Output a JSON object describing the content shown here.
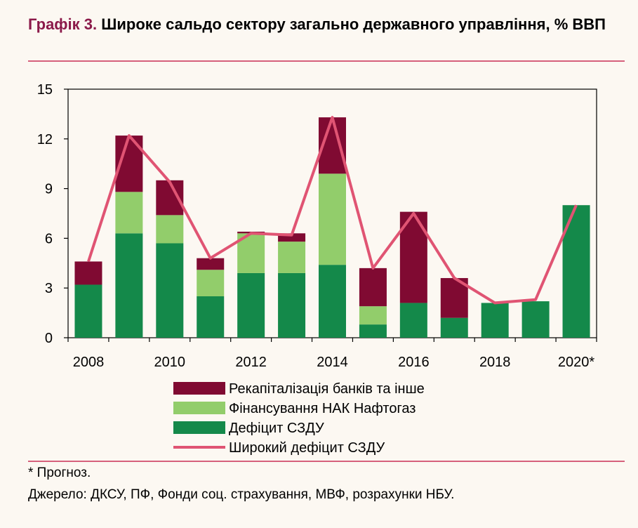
{
  "header": {
    "title_lead": "Графік 3.",
    "title_rest": "Широке сальдо сектору загально державного управління, % ВВП"
  },
  "footnote": "* Прогноз.",
  "source": "Джерело: ДКСУ, ПФ, Фонди соц. страхування, МВФ, розрахунки НБУ.",
  "colors": {
    "recap": "#800a32",
    "naftogaz": "#92cd6b",
    "deficit": "#14894a",
    "line": "#e05473"
  },
  "chart_data": {
    "type": "bar",
    "stacked": true,
    "categories": [
      "2008",
      "2009",
      "2010",
      "2011",
      "2012",
      "2013",
      "2014",
      "2015",
      "2016",
      "2017",
      "2018",
      "2019",
      "2020*"
    ],
    "tick_labels": [
      "2008",
      "",
      "2010",
      "",
      "2012",
      "",
      "2014",
      "",
      "2016",
      "",
      "2018",
      "",
      "2020*"
    ],
    "ylim": [
      0,
      15
    ],
    "yticks": [
      0,
      3,
      6,
      9,
      12,
      15
    ],
    "legend_position": "bottom",
    "series": [
      {
        "name": "Дефіцит СЗДУ",
        "key": "deficit",
        "values": [
          3.2,
          6.3,
          5.7,
          2.5,
          3.9,
          3.9,
          4.4,
          0.8,
          2.1,
          1.2,
          2.1,
          2.2,
          8.0
        ]
      },
      {
        "name": "Фінансування НАК Нафтогаз",
        "key": "naftogaz",
        "values": [
          0,
          2.5,
          1.7,
          1.6,
          2.4,
          1.9,
          5.5,
          1.1,
          0,
          0,
          0,
          0,
          0
        ]
      },
      {
        "name": "Рекапіталізація банків та інше",
        "key": "recap",
        "values": [
          1.4,
          3.4,
          2.1,
          0.7,
          0.1,
          0.5,
          3.4,
          2.3,
          5.5,
          2.4,
          0,
          0,
          0
        ]
      }
    ],
    "line_series": {
      "name": "Широкий дефіцит СЗДУ",
      "key": "line",
      "values": [
        4.6,
        12.2,
        9.4,
        4.8,
        6.3,
        6.2,
        13.3,
        4.2,
        7.5,
        3.6,
        2.1,
        2.3,
        8.0
      ]
    },
    "legend_order": [
      "recap",
      "naftogaz",
      "deficit",
      "line"
    ]
  }
}
